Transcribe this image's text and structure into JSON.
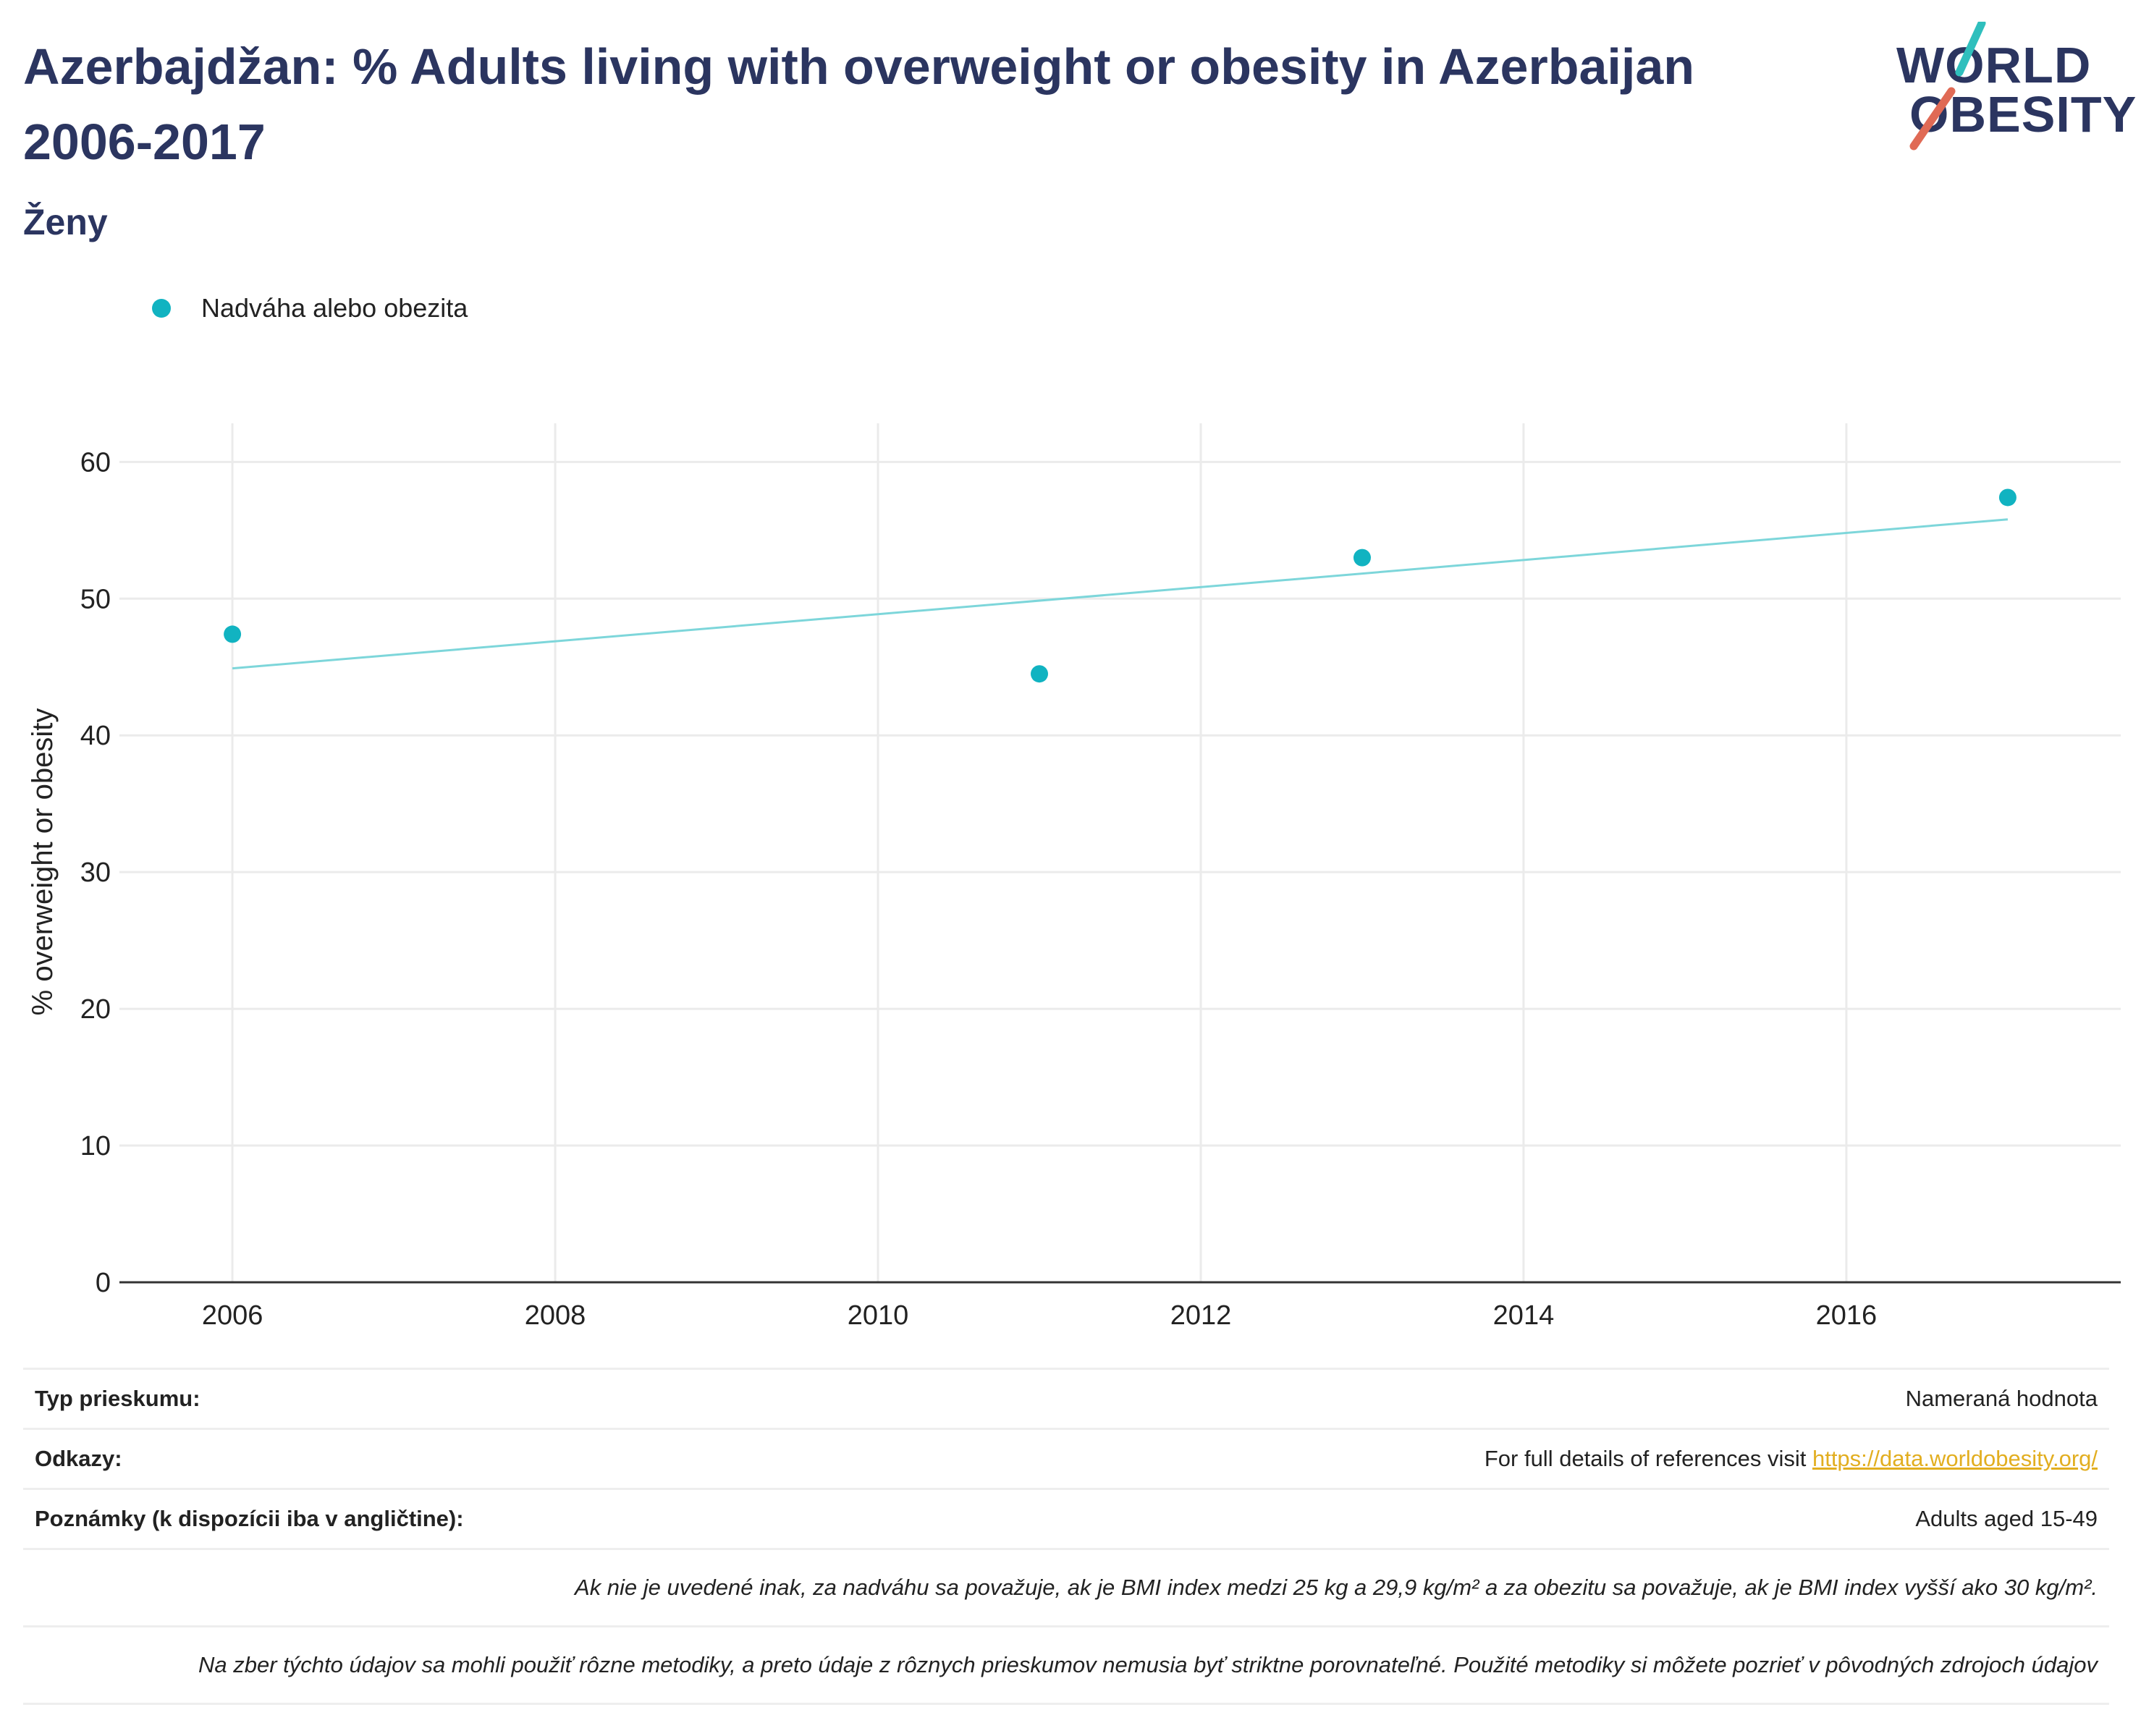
{
  "header": {
    "title": "Azerbajdžan: % Adults living with overweight or obesity in Azerbaijan 2006-2017",
    "subtitle": "Ženy"
  },
  "logo": {
    "line1": "WORLD",
    "line2": "OBESITY",
    "accent_teal": "#2fbfbd",
    "accent_red": "#e06a55"
  },
  "colors": {
    "marker": "#11b3c1",
    "trend": "#7dd6da",
    "grid": "#ebebeb",
    "axis": "#333333",
    "title": "#2b3560"
  },
  "chart_data": {
    "type": "scatter",
    "title": "Azerbajdžan: % Adults living with overweight or obesity in Azerbaijan 2006-2017",
    "subtitle": "Ženy",
    "ylabel": "% overweight or obesity",
    "xlabel": "",
    "xlim": [
      2005.3,
      2017.7
    ],
    "ylim": [
      0,
      61.5
    ],
    "xticks": [
      2006,
      2008,
      2010,
      2012,
      2014,
      2016
    ],
    "yticks": [
      0,
      10,
      20,
      30,
      40,
      50,
      60
    ],
    "grid": true,
    "legend_position": "top-left",
    "series": [
      {
        "name": "Nadváha alebo obezita",
        "x": [
          2006,
          2011,
          2013,
          2017
        ],
        "y": [
          47.4,
          44.5,
          53.0,
          57.4
        ]
      }
    ],
    "trendline": {
      "x": [
        2006,
        2017
      ],
      "y": [
        44.9,
        55.8
      ]
    }
  },
  "info": {
    "survey_label": "Typ prieskumu:",
    "survey_value": "Nameraná hodnota",
    "refs_label": "Odkazy:",
    "refs_text": "For full details of references visit ",
    "refs_link": "https://data.worldobesity.org/",
    "notes_label": "Poznámky (k dispozícii iba v angličtine):",
    "notes_value": "Adults aged 15-49",
    "note_bmi": "Ak nie je uvedené inak, za nadváhu sa považuje, ak je BMI index medzi 25 kg a 29,9 kg/m² a za obezitu sa považuje, ak je BMI index vyšší ako 30 kg/m².",
    "note_methods": "Na zber týchto údajov sa mohli použiť rôzne metodiky, a preto údaje z rôznych prieskumov nemusia byť striktne porovnateľné. Použité metodiky si môžete pozrieť v pôvodných zdrojoch údajov"
  }
}
